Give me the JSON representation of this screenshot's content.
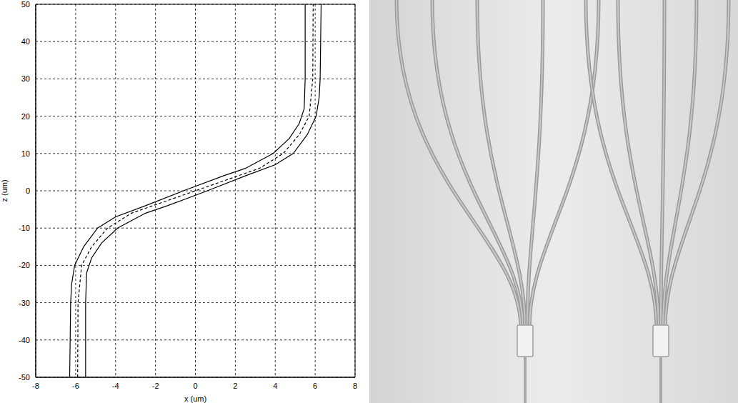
{
  "chart_data": {
    "type": "line",
    "x_label": "x (um)",
    "y_label": "z (um)",
    "xlim": [
      -8,
      8
    ],
    "ylim": [
      -50,
      50
    ],
    "xticks": [
      -8,
      -6,
      -4,
      -2,
      0,
      2,
      4,
      6,
      8
    ],
    "yticks": [
      -50,
      -40,
      -30,
      -20,
      -10,
      0,
      10,
      20,
      30,
      40,
      50
    ],
    "grid": true,
    "series": [
      {
        "color": "#000000",
        "line_style": "solid",
        "x": [
          -6.3,
          -6.25,
          -6.2,
          -6.05,
          -5.6,
          -4.9,
          -4.0,
          -2.5,
          -0.6,
          1.4,
          2.5,
          3.9,
          4.7,
          5.2,
          5.45,
          5.5,
          5.5
        ],
        "values": [
          -50,
          -30,
          -25,
          -20,
          -15,
          -10,
          -7,
          -4,
          0,
          4,
          6,
          10,
          14,
          18,
          22,
          30,
          50
        ]
      },
      {
        "color": "#000000",
        "line_style": "dashed",
        "x": [
          -5.9,
          -5.88,
          -5.7,
          -5.2,
          -4.4,
          -3.2,
          -1.6,
          0,
          1.6,
          3.2,
          4.4,
          5.2,
          5.7,
          5.88,
          5.9
        ],
        "values": [
          -50,
          -30,
          -20,
          -15,
          -10,
          -6,
          -3,
          0,
          3,
          6,
          10,
          15,
          20,
          30,
          50
        ]
      },
      {
        "color": "#000000",
        "line_style": "solid",
        "x": [
          -5.5,
          -5.5,
          -5.45,
          -5.2,
          -4.7,
          -3.9,
          -2.5,
          -1.4,
          0.6,
          2.5,
          4.0,
          4.9,
          5.6,
          6.05,
          6.2,
          6.25,
          6.3
        ],
        "values": [
          -50,
          -30,
          -22,
          -18,
          -14,
          -10,
          -6,
          -4,
          0,
          4,
          7,
          10,
          15,
          20,
          25,
          30,
          50
        ]
      }
    ]
  }
}
